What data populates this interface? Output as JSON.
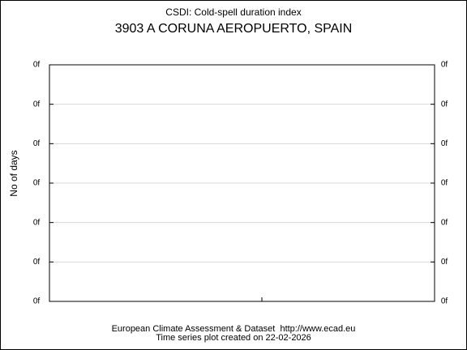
{
  "chart_data": {
    "type": "line",
    "title": "CSDI: Cold-spell duration index",
    "subtitle": "3903 A CORUNA AEROPUERTO, SPAIN",
    "ylabel": "No of days",
    "ylim": [
      0,
      6
    ],
    "yticks": [
      {
        "value": 0,
        "label": "0f"
      },
      {
        "value": 1,
        "label": "0f"
      },
      {
        "value": 2,
        "label": "0f"
      },
      {
        "value": 3,
        "label": "0f"
      },
      {
        "value": 4,
        "label": "0f"
      },
      {
        "value": 5,
        "label": "0f"
      },
      {
        "value": 6,
        "label": "0f"
      }
    ],
    "grid": true,
    "footer": [
      "European Climate Assessment & Dataset  http://www.ecad.eu",
      "Time series plot created on 22-02-2026"
    ]
  }
}
